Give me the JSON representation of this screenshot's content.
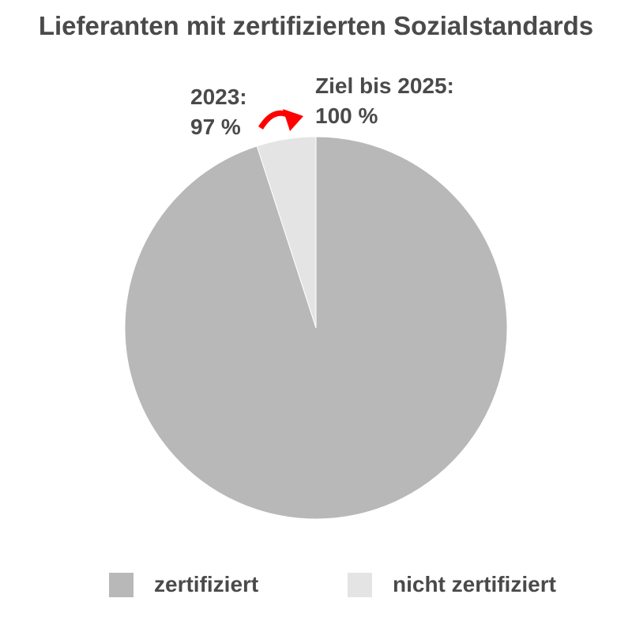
{
  "chart_data": {
    "type": "pie",
    "title": "Lieferanten mit zertifizierten Sozialstandards",
    "categories": [
      "zertifiziert",
      "nicht zertifiziert"
    ],
    "values": [
      95,
      5
    ],
    "colors": [
      "#b8b8b8",
      "#e4e4e4"
    ],
    "legend_position": "bottom",
    "annotations": [
      {
        "line1": "2023:",
        "line2": "97 %"
      },
      {
        "line1": "Ziel bis 2025:",
        "line2": "100 %"
      }
    ],
    "arrow_color": "#ff0000"
  }
}
